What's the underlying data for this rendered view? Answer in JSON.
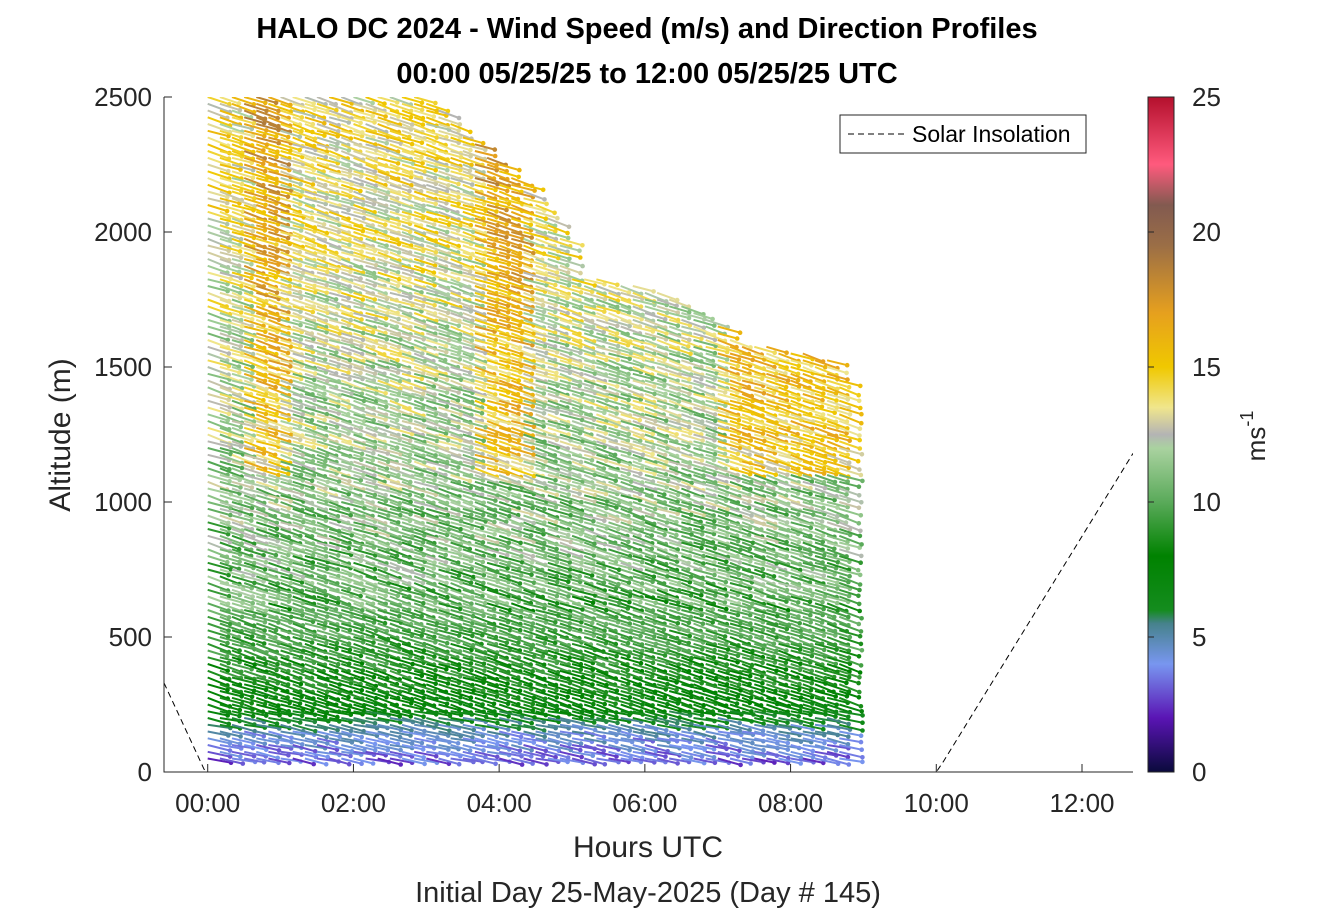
{
  "chart_data": {
    "type": "wind-barb-profile",
    "title": "HALO DC 2024 - Wind Speed (m/s) and Direction Profiles",
    "subtitle": "00:00 05/25/25 to 12:00 05/25/25  UTC",
    "xlabel": "Hours UTC",
    "xlabel2": "Initial Day 25-May-2025 (Day # 145)",
    "ylabel": "Altitude (m)",
    "xlim": [
      -0.6,
      12.7
    ],
    "ylim": [
      0,
      2500
    ],
    "x_ticks": [
      {
        "value": 0,
        "label": "00:00"
      },
      {
        "value": 2,
        "label": "02:00"
      },
      {
        "value": 4,
        "label": "04:00"
      },
      {
        "value": 6,
        "label": "06:00"
      },
      {
        "value": 8,
        "label": "08:00"
      },
      {
        "value": 10,
        "label": "10:00"
      },
      {
        "value": 12,
        "label": "12:00"
      }
    ],
    "y_ticks": [
      {
        "value": 0,
        "label": "0"
      },
      {
        "value": 500,
        "label": "500"
      },
      {
        "value": 1000,
        "label": "1000"
      },
      {
        "value": 1500,
        "label": "1500"
      },
      {
        "value": 2000,
        "label": "2000"
      },
      {
        "value": 2500,
        "label": "2500"
      }
    ],
    "colorbar": {
      "label": "ms",
      "label_exponent": "-1",
      "range": [
        0,
        25
      ],
      "ticks": [
        {
          "value": 0,
          "label": "0"
        },
        {
          "value": 5,
          "label": "5"
        },
        {
          "value": 10,
          "label": "10"
        },
        {
          "value": 15,
          "label": "15"
        },
        {
          "value": 20,
          "label": "20"
        },
        {
          "value": 25,
          "label": "25"
        }
      ],
      "stops": [
        {
          "v": 0,
          "color": "#0a0a3c"
        },
        {
          "v": 2,
          "color": "#5a14b4"
        },
        {
          "v": 4,
          "color": "#7896f0"
        },
        {
          "v": 5.5,
          "color": "#46828c"
        },
        {
          "v": 6,
          "color": "#148c1e"
        },
        {
          "v": 8,
          "color": "#008200"
        },
        {
          "v": 10,
          "color": "#5aaa5a"
        },
        {
          "v": 12,
          "color": "#aad2a0"
        },
        {
          "v": 12.5,
          "color": "#b4b4b4"
        },
        {
          "v": 13.5,
          "color": "#f0e68c"
        },
        {
          "v": 15,
          "color": "#f0c800"
        },
        {
          "v": 17,
          "color": "#e6a01e"
        },
        {
          "v": 19.5,
          "color": "#9b6e46"
        },
        {
          "v": 21,
          "color": "#825a50"
        },
        {
          "v": 22.5,
          "color": "#ff5a7d"
        },
        {
          "v": 25,
          "color": "#b4102d"
        }
      ]
    },
    "legend": {
      "entries": [
        "Solar Insolation"
      ],
      "position": "top-right",
      "line_style": "dashed",
      "color": "#000000"
    },
    "solar_insolation_line": [
      [
        -0.6,
        330
      ],
      [
        -0.05,
        10
      ],
      [
        0.0,
        0
      ],
      [
        10.0,
        0
      ],
      [
        10.1,
        40
      ],
      [
        12.7,
        1180
      ]
    ],
    "profiles": {
      "description_times_hours": "profiles every 0.1667 h from 0.0 to 8.83",
      "time_start": 0.0,
      "time_step": 0.1667,
      "time_end": 8.83,
      "altitude_start": 50,
      "altitude_step": 25,
      "top_altitudes": [
        {
          "t": 0.0,
          "top": 2500
        },
        {
          "t": 1.5,
          "top": 2500
        },
        {
          "t": 3.0,
          "top": 2500
        },
        {
          "t": 3.5,
          "top": 2370
        },
        {
          "t": 4.33,
          "top": 2180
        },
        {
          "t": 4.83,
          "top": 2000
        },
        {
          "t": 5.0,
          "top": 1850
        },
        {
          "t": 6.0,
          "top": 1800
        },
        {
          "t": 6.83,
          "top": 1700
        },
        {
          "t": 7.17,
          "top": 1610
        },
        {
          "t": 7.5,
          "top": 1580
        },
        {
          "t": 8.0,
          "top": 1570
        },
        {
          "t": 8.5,
          "top": 1540
        },
        {
          "t": 8.83,
          "top": 1400
        }
      ],
      "speed_profile_m_s": [
        {
          "alt": 0,
          "speed": 2.5
        },
        {
          "alt": 150,
          "speed": 4.5
        },
        {
          "alt": 250,
          "speed": 7.5
        },
        {
          "alt": 500,
          "speed": 9.5
        },
        {
          "alt": 900,
          "speed": 11
        },
        {
          "alt": 1300,
          "speed": 12
        },
        {
          "alt": 1600,
          "speed": 12.5
        },
        {
          "alt": 2000,
          "speed": 13.5
        },
        {
          "alt": 2500,
          "speed": 14
        }
      ],
      "direction_note": "predominantly from the northwest, arrows point down-right"
    }
  }
}
